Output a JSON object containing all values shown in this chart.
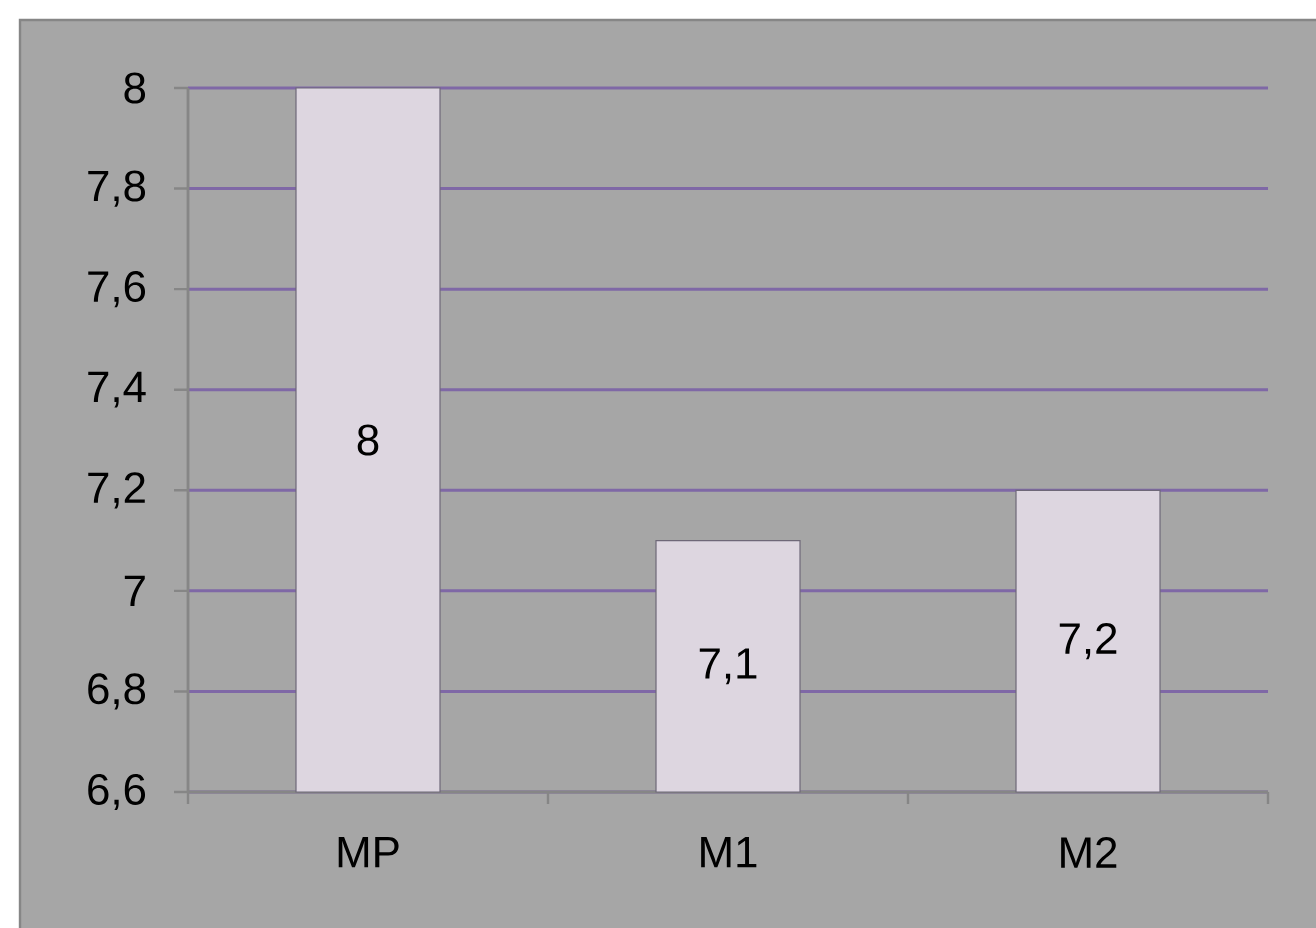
{
  "chart_data": {
    "type": "bar",
    "categories": [
      "MP",
      "M1",
      "M2"
    ],
    "values": [
      8,
      7.1,
      7.2
    ],
    "color": "#ddd6e0",
    "ylim": [
      6.6,
      8
    ],
    "yticks": [
      {
        "value": 6.6,
        "label": "6,6"
      },
      {
        "value": 6.8,
        "label": "6,8"
      },
      7,
      {
        "value": 7.2,
        "label": "7,2"
      },
      {
        "value": 7.4,
        "label": "7,4"
      },
      {
        "value": 7.6,
        "label": "7,6"
      },
      {
        "value": 7.8,
        "label": "7,8"
      },
      8
    ],
    "value_labels": [
      "8",
      "7,1",
      "7,2"
    ],
    "grid": "y"
  }
}
